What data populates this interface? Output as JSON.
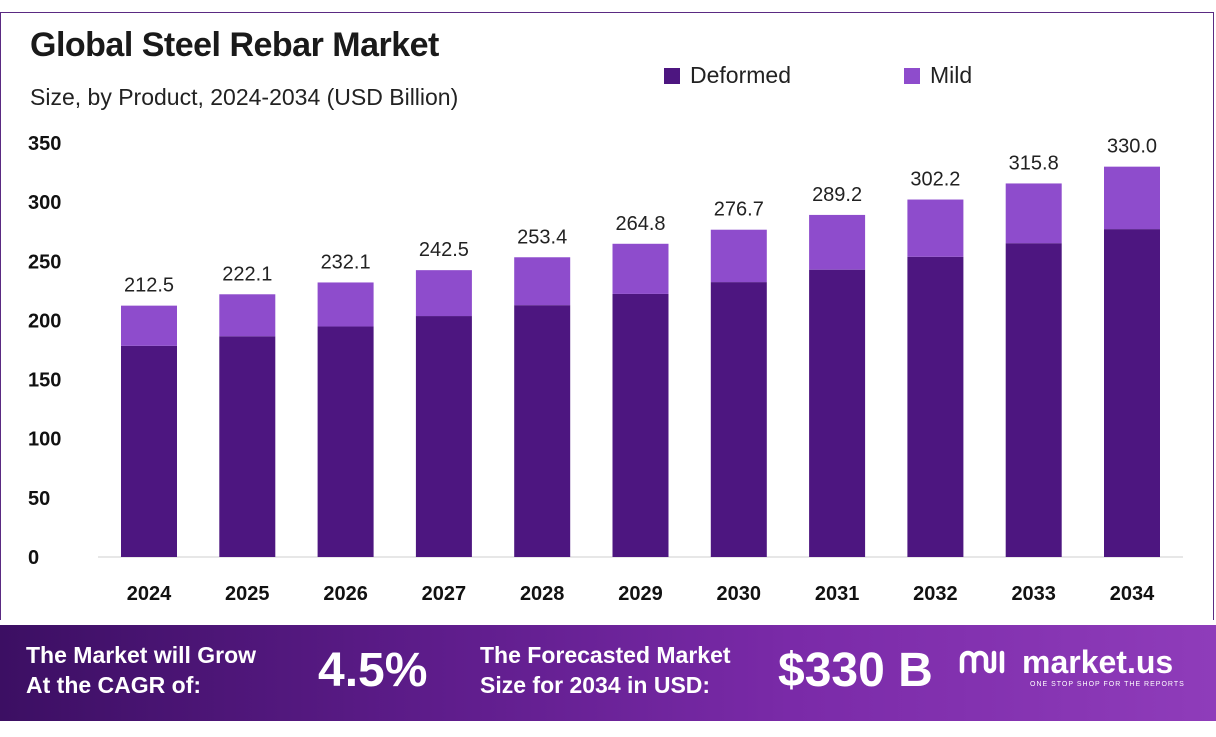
{
  "chart_data": {
    "type": "bar",
    "stacked": true,
    "title": "Global Steel Rebar Market",
    "subtitle": "Size, by Product, 2024-2034 (USD Billion)",
    "categories": [
      "2024",
      "2025",
      "2026",
      "2027",
      "2028",
      "2029",
      "2030",
      "2031",
      "2032",
      "2033",
      "2034"
    ],
    "series": [
      {
        "name": "Deformed",
        "color": "#4d1680",
        "values": [
          178.5,
          186.6,
          194.9,
          203.7,
          212.9,
          222.4,
          232.4,
          242.9,
          253.8,
          265.3,
          277.2
        ]
      },
      {
        "name": "Mild",
        "color": "#8e4ccc",
        "values": [
          34.0,
          35.5,
          37.2,
          38.8,
          40.5,
          42.4,
          44.3,
          46.3,
          48.4,
          50.5,
          52.8
        ]
      }
    ],
    "totals": [
      "212.5",
      "222.1",
      "232.1",
      "242.5",
      "253.4",
      "264.8",
      "276.7",
      "289.2",
      "302.2",
      "315.8",
      "330.0"
    ],
    "ylim": [
      0,
      350
    ],
    "yticks": [
      0,
      50,
      100,
      150,
      200,
      250,
      300,
      350
    ],
    "grid": false,
    "legend_position": "top-right"
  },
  "footer": {
    "cagr_label": "The Market will Grow\nAt the CAGR of:",
    "cagr_value": "4.5%",
    "forecast_label": "The Forecasted Market\nSize for 2034 in USD:",
    "forecast_value": "$330 B",
    "brand": "market.us",
    "brand_tagline": "ONE STOP SHOP FOR THE REPORTS",
    "logo_icon": "market-us-logo-icon"
  }
}
